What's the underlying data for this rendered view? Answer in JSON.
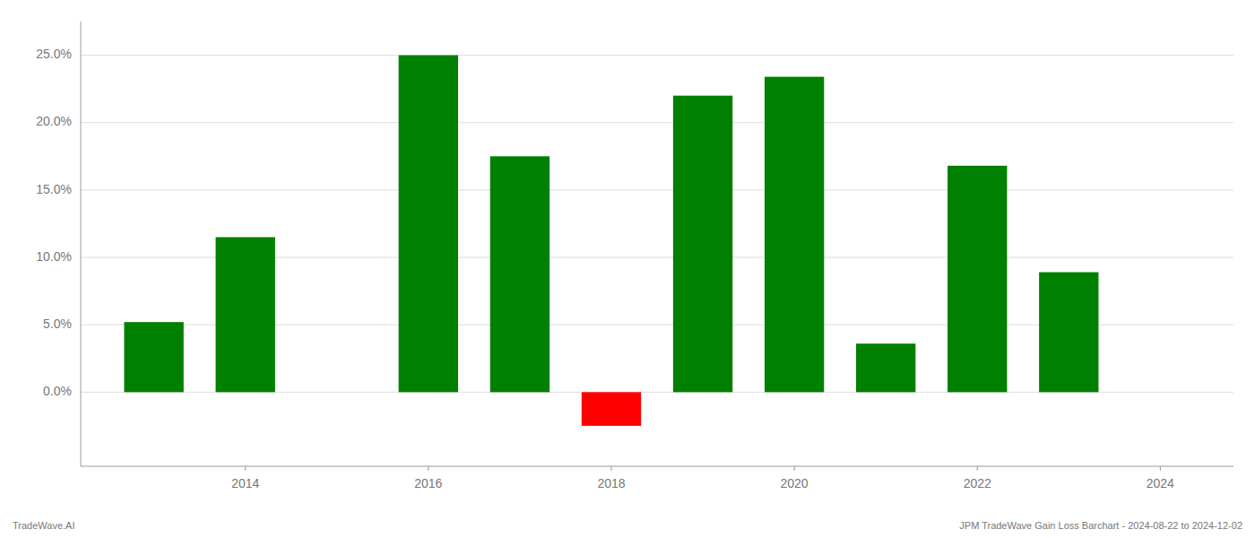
{
  "chart_data": {
    "type": "bar",
    "x": [
      2013,
      2014,
      2016,
      2017,
      2018,
      2019,
      2020,
      2021,
      2022,
      2023
    ],
    "values": [
      0.052,
      0.115,
      0.25,
      0.175,
      -0.025,
      0.22,
      0.234,
      0.036,
      0.168,
      0.089
    ],
    "colors": [
      "#008000",
      "#008000",
      "#008000",
      "#008000",
      "#FF0000",
      "#008000",
      "#008000",
      "#008000",
      "#008000",
      "#008000"
    ],
    "xlim": [
      2012.2,
      2024.8
    ],
    "xticks": [
      2014,
      2016,
      2018,
      2020,
      2022,
      2024
    ],
    "ylim": [
      -0.055,
      0.275
    ],
    "yticks": [
      {
        "value": 0.0,
        "label": "0.0%"
      },
      {
        "value": 0.05,
        "label": "5.0%"
      },
      {
        "value": 0.1,
        "label": "10.0%"
      },
      {
        "value": 0.15,
        "label": "15.0%"
      },
      {
        "value": 0.2,
        "label": "20.0%"
      },
      {
        "value": 0.25,
        "label": "25.0%"
      }
    ],
    "grid": true,
    "annotations": [
      "TradeWave.AI",
      "JPM TradeWave Gain Loss Barchart - 2024-08-22 to 2024-12-02"
    ]
  }
}
